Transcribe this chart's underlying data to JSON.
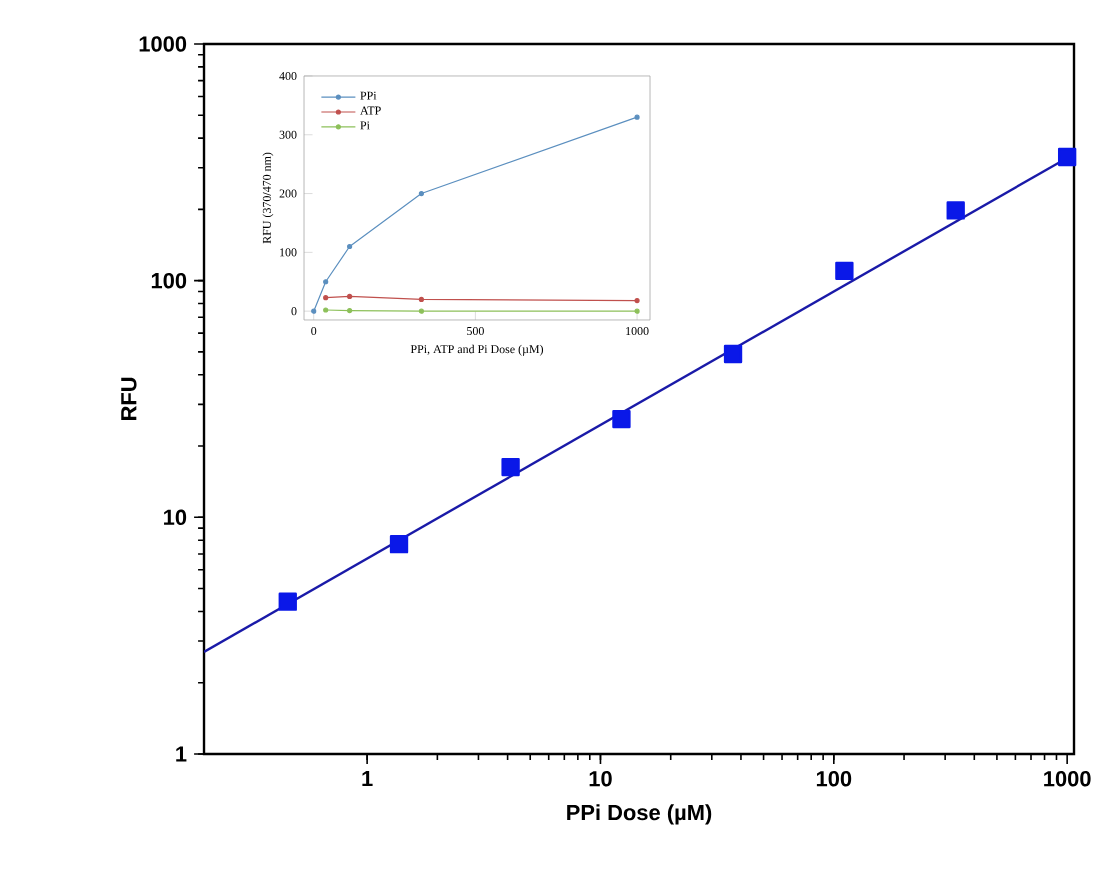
{
  "chart_data": [
    {
      "type": "scatter",
      "xlabel": "PPi Dose (µM)",
      "ylabel": "RFU",
      "log": "xy",
      "xlim": [
        0.2,
        1070
      ],
      "ylim": [
        1,
        1000
      ],
      "xticks": [
        1,
        10,
        100,
        1000
      ],
      "yticks": [
        1,
        10,
        100,
        1000
      ],
      "legend": false,
      "x": [
        0.457,
        1.37,
        4.12,
        12.3,
        37,
        111,
        333,
        1000
      ],
      "series": [
        {
          "type": "scatter",
          "marker": "square",
          "color": "#0a18e8",
          "values": [
            4.4,
            7.7,
            16.3,
            26,
            49,
            110,
            198,
            333
          ]
        },
        {
          "type": "line",
          "marker": "none",
          "color": "#1a1aa8",
          "x": [
            0.2,
            1000
          ],
          "values": [
            2.7,
            330
          ]
        }
      ]
    },
    {
      "type": "line",
      "xlabel": "PPi, ATP and Pi Dose (µM)",
      "ylabel": "RFU (370/470 nm)",
      "xlim": [
        -30,
        1040
      ],
      "ylim": [
        -15,
        400
      ],
      "xticks": [
        0,
        500,
        1000
      ],
      "yticks": [
        0,
        100,
        200,
        300,
        400
      ],
      "legend": "top left",
      "marker": "circle",
      "x": [
        37,
        111,
        333,
        1000
      ],
      "series": [
        {
          "name": "PPi",
          "color": "#5b8fbf",
          "x": [
            0,
            37,
            111,
            333,
            1000
          ],
          "values": [
            0,
            50,
            110,
            200,
            330
          ]
        },
        {
          "name": "ATP",
          "color": "#c0504d",
          "values": [
            23,
            25,
            20,
            18
          ]
        },
        {
          "name": "Pi",
          "color": "#8dc05a",
          "values": [
            2,
            1,
            0,
            0
          ]
        }
      ]
    }
  ]
}
